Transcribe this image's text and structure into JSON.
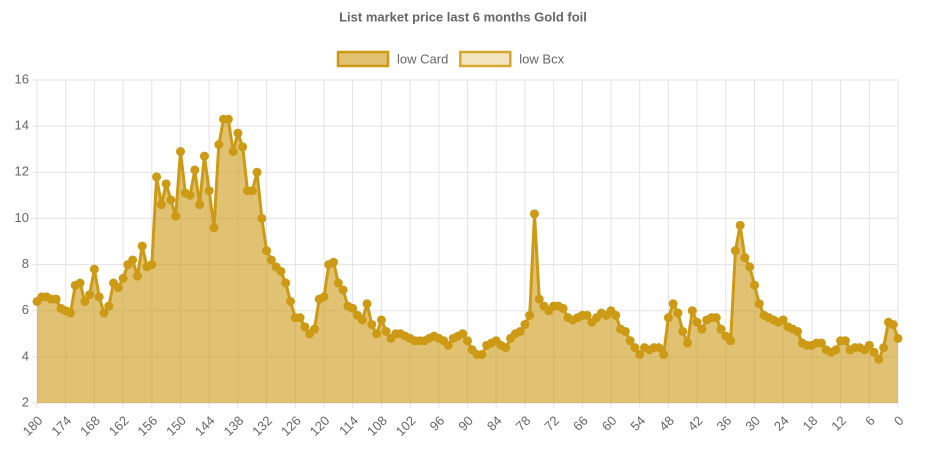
{
  "chart_data": {
    "type": "line",
    "title": "List market price last 6 months Gold foil",
    "x": [
      180,
      179,
      178,
      177,
      176,
      175,
      174,
      173,
      172,
      171,
      170,
      169,
      168,
      167,
      166,
      165,
      164,
      163,
      162,
      161,
      160,
      159,
      158,
      157,
      156,
      155,
      154,
      153,
      152,
      151,
      150,
      149,
      148,
      147,
      146,
      145,
      144,
      143,
      142,
      141,
      140,
      139,
      138,
      137,
      136,
      135,
      134,
      133,
      132,
      131,
      130,
      129,
      128,
      127,
      126,
      125,
      124,
      123,
      122,
      121,
      120,
      119,
      118,
      117,
      116,
      115,
      114,
      113,
      112,
      111,
      110,
      109,
      108,
      107,
      106,
      105,
      104,
      103,
      102,
      101,
      100,
      99,
      98,
      97,
      96,
      95,
      94,
      93,
      92,
      91,
      90,
      89,
      88,
      87,
      86,
      85,
      84,
      83,
      82,
      81,
      80,
      79,
      78,
      77,
      76,
      75,
      74,
      73,
      72,
      71,
      70,
      69,
      68,
      67,
      66,
      65,
      64,
      63,
      62,
      61,
      60,
      59,
      58,
      57,
      56,
      55,
      54,
      53,
      52,
      51,
      50,
      49,
      48,
      47,
      46,
      45,
      44,
      43,
      42,
      41,
      40,
      39,
      38,
      37,
      36,
      35,
      34,
      33,
      32,
      31,
      30,
      29,
      28,
      27,
      26,
      25,
      24,
      23,
      22,
      21,
      20,
      19,
      18,
      17,
      16,
      15,
      14,
      13,
      12,
      11,
      10,
      9,
      8,
      7,
      6,
      5,
      4,
      3,
      2,
      1,
      0
    ],
    "series": [
      {
        "name": "low Card",
        "color": "#cc9a14",
        "values": [
          6.4,
          6.6,
          6.6,
          6.5,
          6.5,
          6.1,
          6.0,
          5.9,
          7.1,
          7.2,
          6.4,
          6.7,
          7.8,
          6.6,
          5.9,
          6.2,
          7.2,
          7.0,
          7.4,
          8.0,
          8.2,
          7.5,
          8.8,
          7.9,
          8.0,
          11.8,
          10.6,
          11.5,
          10.8,
          10.1,
          12.9,
          11.1,
          11.0,
          12.1,
          10.6,
          12.7,
          11.2,
          9.6,
          13.2,
          14.3,
          14.3,
          12.9,
          13.7,
          13.1,
          11.2,
          11.2,
          12.0,
          10.0,
          8.6,
          8.2,
          7.9,
          7.7,
          7.2,
          6.4,
          5.7,
          5.7,
          5.3,
          5.0,
          5.2,
          6.5,
          6.6,
          8.0,
          8.1,
          7.2,
          6.9,
          6.2,
          6.1,
          5.8,
          5.6,
          6.3,
          5.4,
          5.0,
          5.6,
          5.1,
          4.8,
          5.0,
          5.0,
          4.9,
          4.8,
          4.7,
          4.7,
          4.7,
          4.8,
          4.9,
          4.8,
          4.7,
          4.5,
          4.8,
          4.9,
          5.0,
          4.7,
          4.3,
          4.1,
          4.1,
          4.5,
          4.6,
          4.7,
          4.5,
          4.4,
          4.8,
          5.0,
          5.1,
          5.4,
          5.8,
          10.2,
          6.5,
          6.2,
          6.0,
          6.2,
          6.2,
          6.1,
          5.7,
          5.6,
          5.7,
          5.8,
          5.8,
          5.5,
          5.7,
          5.9,
          5.8,
          6.0,
          5.8,
          5.2,
          5.1,
          4.7,
          4.4,
          4.1,
          4.4,
          4.3,
          4.4,
          4.4,
          4.1,
          5.7,
          6.3,
          5.9,
          5.1,
          4.6,
          6.0,
          5.5,
          5.2,
          5.6,
          5.7,
          5.7,
          5.2,
          4.9,
          4.7,
          8.6,
          9.7,
          8.3,
          7.9,
          7.1,
          6.3,
          5.8,
          5.7,
          5.6,
          5.5,
          5.6,
          5.3,
          5.2,
          5.1,
          4.6,
          4.5,
          4.5,
          4.6,
          4.6,
          4.3,
          4.2,
          4.3,
          4.7,
          4.7,
          4.3,
          4.4,
          4.4,
          4.3,
          4.5,
          4.2,
          3.9,
          4.4,
          5.5,
          5.4,
          4.8
        ]
      },
      {
        "name": "low Bcx",
        "color": "#d4a82c",
        "values": [
          null,
          null,
          null,
          null,
          null,
          null,
          null,
          null,
          null,
          null,
          null,
          null,
          null,
          null,
          null,
          null,
          null,
          null,
          null,
          null,
          null,
          null,
          null,
          null,
          null,
          null,
          null,
          null,
          null,
          null,
          null,
          null,
          null,
          null,
          null,
          null,
          null,
          null,
          null,
          null,
          null,
          null,
          null,
          null,
          null,
          null,
          null,
          null,
          null,
          null,
          null,
          null,
          null,
          null,
          null,
          null,
          null,
          null,
          null,
          null,
          null,
          null,
          null,
          null,
          null,
          null,
          null,
          null,
          null,
          null,
          null,
          null,
          null,
          null,
          null,
          null,
          null,
          null,
          null,
          null,
          null,
          null,
          null,
          null,
          null,
          null,
          null,
          null,
          null,
          null,
          null,
          null,
          null,
          null,
          null,
          null,
          null,
          null,
          null,
          null,
          null,
          null,
          null,
          null,
          null,
          null,
          null,
          null,
          null,
          null,
          null,
          null,
          null,
          null,
          null,
          null,
          null,
          null,
          null,
          null,
          null,
          null,
          null,
          null,
          null,
          null,
          null,
          null,
          null,
          null,
          null,
          null,
          null,
          null,
          null,
          null,
          null,
          null,
          null,
          null,
          null,
          null,
          null,
          null,
          null,
          null,
          null,
          null,
          null,
          null,
          null,
          null,
          null,
          null,
          null,
          null,
          null,
          null,
          null,
          null,
          null,
          null,
          null,
          null,
          null,
          null,
          null,
          null,
          null,
          null,
          null,
          null,
          null,
          null,
          null,
          null,
          null,
          null,
          null,
          null,
          null
        ]
      }
    ],
    "xlim": [
      180,
      0
    ],
    "xticks": [
      180,
      174,
      168,
      162,
      156,
      150,
      144,
      138,
      132,
      126,
      120,
      114,
      108,
      102,
      96,
      90,
      84,
      78,
      72,
      66,
      60,
      54,
      48,
      42,
      36,
      30,
      24,
      18,
      12,
      6,
      0
    ],
    "ylim": [
      2,
      16
    ],
    "yticks": [
      2,
      4,
      6,
      8,
      10,
      12,
      14,
      16
    ],
    "grid": true,
    "legend": "top"
  }
}
